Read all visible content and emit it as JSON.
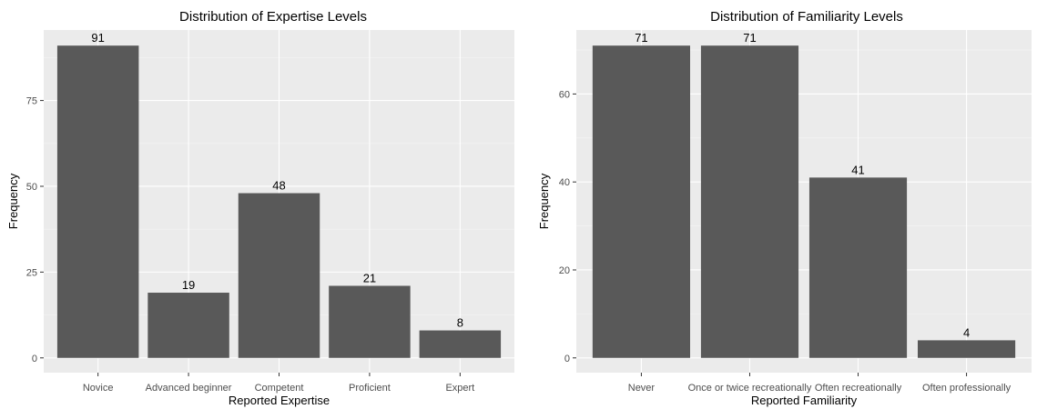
{
  "chart_data": [
    {
      "type": "bar",
      "title": "Distribution of Expertise Levels",
      "xlabel": "Reported Expertise",
      "ylabel": "Frequency",
      "categories": [
        "Novice",
        "Advanced beginner",
        "Competent",
        "Proficient",
        "Expert"
      ],
      "values": [
        91,
        19,
        48,
        21,
        8
      ],
      "data_labels": [
        "91",
        "19",
        "48",
        "21",
        "8"
      ],
      "yticks": [
        0,
        25,
        50,
        75
      ],
      "ytick_labels": [
        "0",
        "25",
        "50",
        "75"
      ],
      "ylim": [
        0,
        95.55
      ],
      "grid": true,
      "bar_color": "#595959",
      "panel_color": "#ebebeb"
    },
    {
      "type": "bar",
      "title": "Distribution of Familiarity Levels",
      "xlabel": "Reported Familiarity",
      "ylabel": "Frequency",
      "categories": [
        "Never",
        "Once or twice recreationally",
        "Often recreationally",
        "Often professionally"
      ],
      "values": [
        71,
        71,
        41,
        4
      ],
      "data_labels": [
        "71",
        "71",
        "41",
        "4"
      ],
      "yticks": [
        0,
        20,
        40,
        60
      ],
      "ytick_labels": [
        "0",
        "20",
        "40",
        "60"
      ],
      "ylim": [
        0,
        74.55
      ],
      "grid": true,
      "bar_color": "#595959",
      "panel_color": "#ebebeb"
    }
  ]
}
